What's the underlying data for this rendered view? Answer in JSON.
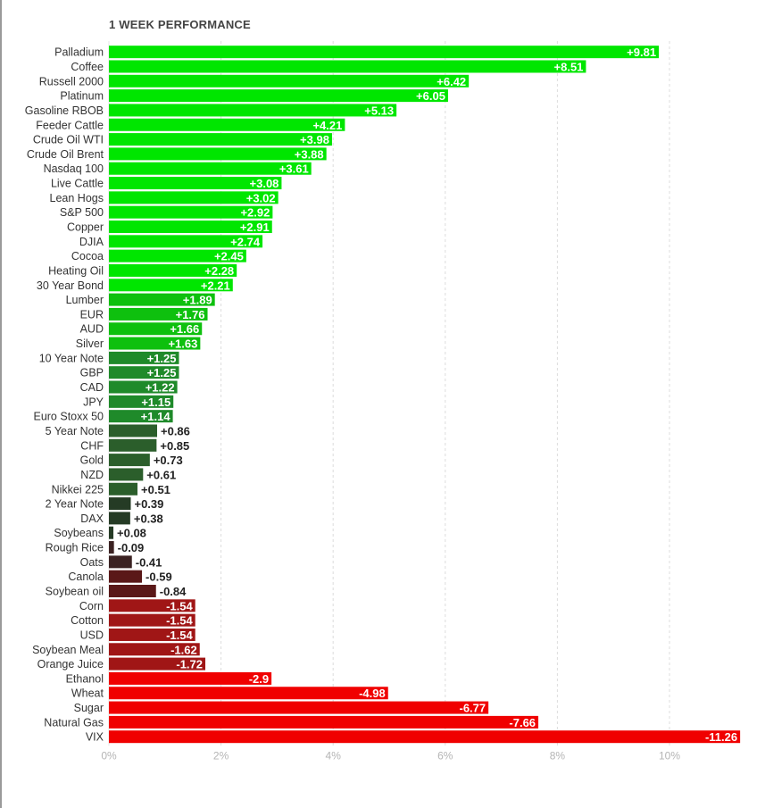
{
  "chart_data": {
    "type": "bar",
    "orientation": "horizontal",
    "title": "1 WEEK PERFORMANCE",
    "xlim": [
      0,
      11.6
    ],
    "grid": true,
    "xticks": [
      {
        "value": 0,
        "label": "0%"
      },
      {
        "value": 2,
        "label": "2%"
      },
      {
        "value": 4,
        "label": "4%"
      },
      {
        "value": 6,
        "label": "6%"
      },
      {
        "value": 8,
        "label": "8%"
      },
      {
        "value": 10,
        "label": "10%"
      }
    ],
    "categories": [
      "Palladium",
      "Coffee",
      "Russell 2000",
      "Platinum",
      "Gasoline RBOB",
      "Feeder Cattle",
      "Crude Oil WTI",
      "Crude Oil Brent",
      "Nasdaq 100",
      "Live Cattle",
      "Lean Hogs",
      "S&P 500",
      "Copper",
      "DJIA",
      "Cocoa",
      "Heating Oil",
      "30 Year Bond",
      "Lumber",
      "EUR",
      "AUD",
      "Silver",
      "10 Year Note",
      "GBP",
      "CAD",
      "JPY",
      "Euro Stoxx 50",
      "5 Year Note",
      "CHF",
      "Gold",
      "NZD",
      "Nikkei 225",
      "2 Year Note",
      "DAX",
      "Soybeans",
      "Rough Rice",
      "Oats",
      "Canola",
      "Soybean oil",
      "Corn",
      "Cotton",
      "USD",
      "Soybean Meal",
      "Orange Juice",
      "Ethanol",
      "Wheat",
      "Sugar",
      "Natural Gas",
      "VIX"
    ],
    "values": [
      9.81,
      8.51,
      6.42,
      6.05,
      5.13,
      4.21,
      3.98,
      3.88,
      3.61,
      3.08,
      3.02,
      2.92,
      2.91,
      2.74,
      2.45,
      2.28,
      2.21,
      1.89,
      1.76,
      1.66,
      1.63,
      1.25,
      1.25,
      1.22,
      1.15,
      1.14,
      0.86,
      0.85,
      0.73,
      0.61,
      0.51,
      0.39,
      0.38,
      0.08,
      -0.09,
      -0.41,
      -0.59,
      -0.84,
      -1.54,
      -1.54,
      -1.54,
      -1.62,
      -1.72,
      -2.9,
      -4.98,
      -6.77,
      -7.66,
      -11.26
    ],
    "value_labels": [
      "+9.81",
      "+8.51",
      "+6.42",
      "+6.05",
      "+5.13",
      "+4.21",
      "+3.98",
      "+3.88",
      "+3.61",
      "+3.08",
      "+3.02",
      "+2.92",
      "+2.91",
      "+2.74",
      "+2.45",
      "+2.28",
      "+2.21",
      "+1.89",
      "+1.76",
      "+1.66",
      "+1.63",
      "+1.25",
      "+1.25",
      "+1.22",
      "+1.15",
      "+1.14",
      "+0.86",
      "+0.85",
      "+0.73",
      "+0.61",
      "+0.51",
      "+0.39",
      "+0.38",
      "+0.08",
      "-0.09",
      "-0.41",
      "-0.59",
      "-0.84",
      "-1.54",
      "-1.54",
      "-1.54",
      "-1.62",
      "-1.72",
      "-2.9",
      "-4.98",
      "-6.77",
      "-7.66",
      "-11.26"
    ],
    "colors": {
      "strong_gain": "#00e600",
      "mid_gain": "#0ec00e",
      "weak_gain": "#1f8a2a",
      "slight_gain": "#2b5e2b",
      "tiny_gain": "#253b25",
      "tiny_loss": "#3b2222",
      "slight_loss": "#5a1818",
      "mid_loss": "#a01616",
      "strong_loss": "#f00000",
      "grid": "#dddddd",
      "axis_label": "#b5b5b5",
      "category_label": "#333333"
    }
  }
}
